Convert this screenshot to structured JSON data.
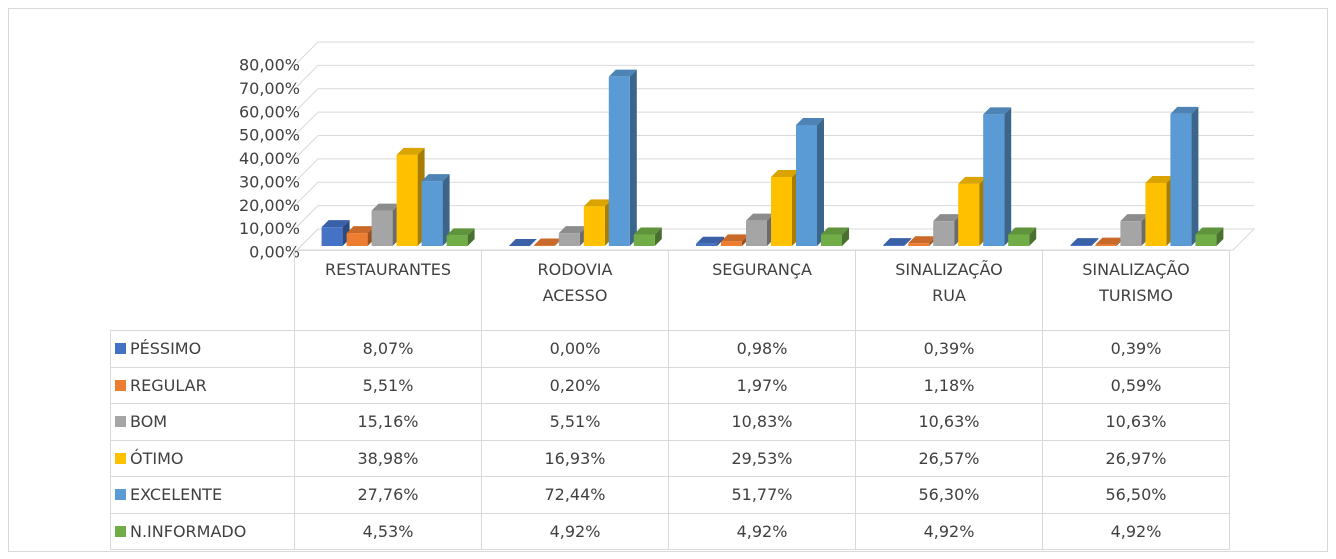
{
  "chart_data": {
    "type": "bar3d",
    "categories": [
      "RESTAURANTES",
      "RODOVIA\nACESSO",
      "SEGURANÇA",
      "SINALIZAÇÃO\nRUA",
      "SINALIZAÇÃO\nTURISMO"
    ],
    "series": [
      {
        "name": "PÉSSIMO",
        "color": "#4472c4",
        "values": [
          8.07,
          0.0,
          0.98,
          0.39,
          0.39
        ],
        "value_labels": [
          "8,07%",
          "0,00%",
          "0,98%",
          "0,39%",
          "0,39%"
        ]
      },
      {
        "name": "REGULAR",
        "color": "#ed7d31",
        "values": [
          5.51,
          0.2,
          1.97,
          1.18,
          0.59
        ],
        "value_labels": [
          "5,51%",
          "0,20%",
          "1,97%",
          "1,18%",
          "0,59%"
        ]
      },
      {
        "name": "BOM",
        "color": "#a5a5a5",
        "values": [
          15.16,
          5.51,
          10.83,
          10.63,
          10.63
        ],
        "value_labels": [
          "15,16%",
          "5,51%",
          "10,83%",
          "10,63%",
          "10,63%"
        ]
      },
      {
        "name": "ÓTIMO",
        "color": "#ffc000",
        "values": [
          38.98,
          16.93,
          29.53,
          26.57,
          26.97
        ],
        "value_labels": [
          "38,98%",
          "16,93%",
          "29,53%",
          "26,57%",
          "26,97%"
        ]
      },
      {
        "name": "EXCELENTE",
        "color": "#5b9bd5",
        "values": [
          27.76,
          72.44,
          51.77,
          56.3,
          56.5
        ],
        "value_labels": [
          "27,76%",
          "72,44%",
          "51,77%",
          "56,30%",
          "56,50%"
        ]
      },
      {
        "name": "N.INFORMADO",
        "color": "#70ad47",
        "values": [
          4.53,
          4.92,
          4.92,
          4.92,
          4.92
        ],
        "value_labels": [
          "4,53%",
          "4,92%",
          "4,92%",
          "4,92%",
          "4,92%"
        ]
      }
    ],
    "ylim": [
      0,
      80
    ],
    "yticks": [
      {
        "value": 0,
        "label": "0,00%"
      },
      {
        "value": 10,
        "label": "10,00%"
      },
      {
        "value": 20,
        "label": "20,00%"
      },
      {
        "value": 30,
        "label": "30,00%"
      },
      {
        "value": 40,
        "label": "40,00%"
      },
      {
        "value": 50,
        "label": "50,00%"
      },
      {
        "value": 60,
        "label": "60,00%"
      },
      {
        "value": 70,
        "label": "70,00%"
      },
      {
        "value": 80,
        "label": "80,00%"
      }
    ],
    "grid": true
  }
}
